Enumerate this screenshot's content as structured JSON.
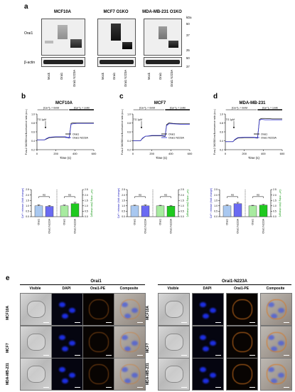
{
  "panels": {
    "a": "a",
    "b": "b",
    "c": "c",
    "d": "d",
    "e": "e"
  },
  "western": {
    "groups": [
      {
        "title": "MCF10A",
        "lanes": [
          "Mock",
          "Orai1",
          "Orai1 N223A"
        ]
      },
      {
        "title": "MCF7 O1KO",
        "lanes": [
          "Mock",
          "Orai1",
          "Orai1 N223A"
        ]
      },
      {
        "title": "MDA-MB-231 O1KO",
        "lanes": [
          "Mock",
          "Orai1",
          "Orai1 N223A"
        ]
      }
    ],
    "row_labels": [
      "Orai1",
      "β-actin"
    ],
    "kda_label": "kDa",
    "kda_marks": [
      "50",
      "37",
      "25",
      "50",
      "37"
    ]
  },
  "traces": [
    {
      "title": "MCF10A",
      "ylabel": "Fura-2 340/380nm fluorescence ratio (a.u.)",
      "xlabel": "Time (s)",
      "ca0": "[Ca²⁺]ₒ = 0mM",
      "ca1": "[Ca²⁺]ₒ = 1mM",
      "tg": "TG 1µM",
      "xticks": [
        "0",
        "200",
        "400",
        "600"
      ],
      "yticks": [
        "0.2",
        "0.4",
        "0.6",
        "0.8",
        "1.0"
      ],
      "legend": [
        "Orai1",
        "Orai1 N223A"
      ]
    },
    {
      "title": "MCF7",
      "ylabel": "Fura-2 340/380nm fluorescence ratio (a.u.)",
      "xlabel": "Time (s)",
      "ca0": "[Ca²⁺]ₒ = 0mM",
      "ca1": "[Ca²⁺]ₒ = 1mM",
      "tg": "TG 1µM",
      "xticks": [
        "0",
        "200",
        "400",
        "600"
      ],
      "yticks": [
        "0.2",
        "0.4",
        "0.6",
        "0.8",
        "1.0"
      ],
      "legend": [
        "Orai1",
        "Orai1 N223A"
      ]
    },
    {
      "title": "MDA-MB-231",
      "ylabel": "Fura-2 340/380nm fluorescence ratio (a.u.)",
      "xlabel": "Time (s)",
      "ca0": "[Ca²⁺]ₒ = 0mM",
      "ca1": "[Ca²⁺]ₒ = 1mM",
      "tg": "TG 1µM",
      "xticks": [
        "0",
        "200",
        "400",
        "600"
      ],
      "yticks": [
        "0.2",
        "0.4",
        "0.6",
        "0.8",
        "1.0"
      ],
      "legend": [
        "Orai1",
        "Orai1 N223A"
      ]
    }
  ],
  "bars": [
    {
      "left_ylabel": "Ca²⁺ release (fold change)",
      "right_ylabel": "Ca²⁺ entry (fold change)",
      "categories": [
        "Orai1",
        "Orai1 N223A",
        "Orai1",
        "Orai1 N223A"
      ],
      "ns": [
        "ns",
        "ns"
      ],
      "yticks": [
        "0.0",
        "0.5",
        "1.0",
        "1.5",
        "2.0",
        "2.5"
      ]
    },
    {
      "left_ylabel": "Ca²⁺ release (fold change)",
      "right_ylabel": "Ca²⁺ entry (fold change)",
      "categories": [
        "Orai1",
        "Orai1 N223A",
        "Orai1",
        "Orai1 N223A"
      ],
      "ns": [
        "ns",
        "ns"
      ],
      "yticks": [
        "0.0",
        "0.5",
        "1.0",
        "1.5",
        "2.0",
        "2.5"
      ]
    },
    {
      "left_ylabel": "Ca²⁺ release (fold change)",
      "right_ylabel": "Ca²⁺ entry (fold change)",
      "categories": [
        "Orai1",
        "Orai1 N223A",
        "Orai1",
        "Orai1 N223A"
      ],
      "ns": [
        "ns",
        "ns"
      ],
      "yticks": [
        "0.0",
        "0.5",
        "1.0",
        "1.5",
        "2.0",
        "2.5"
      ]
    }
  ],
  "micro": {
    "headers": [
      "Orai1",
      "Orai1-N223A"
    ],
    "columns": [
      "Visible",
      "DAPI",
      "Orai1-PE",
      "Composite"
    ],
    "rows": [
      "MCF10A",
      "MCF7",
      "MDA-MB-231"
    ]
  },
  "colors": {
    "orai1_trace": "#111111",
    "n223a_trace": "#3b3bd9",
    "release_orai1": "#a9c8f0",
    "release_n223a": "#6a6af2",
    "entry_orai1": "#a8eba0",
    "entry_n223a": "#1fc91f",
    "pe_signal": "#d9761f",
    "dapi_signal": "#1d2ee0"
  },
  "chart_data": [
    {
      "type": "line",
      "title": "MCF10A",
      "xlabel": "Time (s)",
      "ylabel": "Fura-2 340/380nm fluorescence ratio (a.u.)",
      "xlim": [
        0,
        600
      ],
      "ylim": [
        0.2,
        1.0
      ],
      "series": [
        {
          "name": "Orai1",
          "x": [
            0,
            80,
            100,
            130,
            200,
            300,
            340,
            360,
            380,
            420,
            500,
            600
          ],
          "y": [
            0.42,
            0.42,
            0.44,
            0.47,
            0.48,
            0.48,
            0.46,
            0.79,
            0.8,
            0.8,
            0.8,
            0.8
          ]
        },
        {
          "name": "Orai1 N223A",
          "x": [
            0,
            80,
            100,
            130,
            200,
            300,
            340,
            360,
            380,
            420,
            500,
            600
          ],
          "y": [
            0.42,
            0.42,
            0.45,
            0.48,
            0.49,
            0.49,
            0.47,
            0.77,
            0.78,
            0.79,
            0.79,
            0.79
          ]
        }
      ]
    },
    {
      "type": "line",
      "title": "MCF7",
      "xlabel": "Time (s)",
      "ylabel": "Fura-2 340/380nm fluorescence ratio (a.u.)",
      "xlim": [
        0,
        600
      ],
      "ylim": [
        0.2,
        1.0
      ],
      "series": [
        {
          "name": "Orai1",
          "x": [
            0,
            80,
            100,
            130,
            200,
            300,
            340,
            355,
            380,
            420,
            500,
            600
          ],
          "y": [
            0.4,
            0.4,
            0.45,
            0.5,
            0.51,
            0.51,
            0.5,
            0.76,
            0.8,
            0.79,
            0.78,
            0.78
          ]
        },
        {
          "name": "Orai1 N223A",
          "x": [
            0,
            80,
            100,
            130,
            200,
            300,
            340,
            355,
            380,
            420,
            500,
            600
          ],
          "y": [
            0.4,
            0.4,
            0.46,
            0.5,
            0.52,
            0.52,
            0.51,
            0.74,
            0.78,
            0.78,
            0.77,
            0.77
          ]
        }
      ]
    },
    {
      "type": "line",
      "title": "MDA-MB-231",
      "xlabel": "Time (s)",
      "ylabel": "Fura-2 340/380nm fluorescence ratio (a.u.)",
      "xlim": [
        0,
        600
      ],
      "ylim": [
        0.2,
        1.0
      ],
      "series": [
        {
          "name": "Orai1",
          "x": [
            0,
            80,
            100,
            130,
            200,
            300,
            340,
            360,
            380,
            420,
            500,
            600
          ],
          "y": [
            0.38,
            0.38,
            0.42,
            0.46,
            0.47,
            0.47,
            0.46,
            0.88,
            0.9,
            0.9,
            0.89,
            0.89
          ]
        },
        {
          "name": "Orai1 N223A",
          "x": [
            0,
            80,
            100,
            130,
            200,
            300,
            340,
            360,
            380,
            420,
            500,
            600
          ],
          "y": [
            0.38,
            0.38,
            0.43,
            0.47,
            0.48,
            0.48,
            0.47,
            0.86,
            0.88,
            0.87,
            0.87,
            0.87
          ]
        }
      ]
    },
    {
      "type": "bar",
      "categories": [
        "Orai1",
        "Orai1 N223A",
        "Orai1",
        "Orai1 N223A"
      ],
      "ylim": [
        0,
        2.5
      ],
      "values": [
        1.0,
        0.95,
        1.0,
        1.2
      ],
      "errors": [
        0.1,
        0.08,
        0.07,
        0.12
      ]
    },
    {
      "type": "bar",
      "categories": [
        "Orai1",
        "Orai1 N223A",
        "Orai1",
        "Orai1 N223A"
      ],
      "ylim": [
        0,
        2.5
      ],
      "values": [
        1.0,
        1.0,
        1.0,
        0.97
      ],
      "errors": [
        0.06,
        0.09,
        0.05,
        0.07
      ]
    },
    {
      "type": "bar",
      "categories": [
        "Orai1",
        "Orai1 N223A",
        "Orai1",
        "Orai1 N223A"
      ],
      "ylim": [
        0,
        2.5
      ],
      "values": [
        1.0,
        1.2,
        1.0,
        1.07
      ],
      "errors": [
        0.08,
        0.12,
        0.05,
        0.06
      ]
    }
  ]
}
